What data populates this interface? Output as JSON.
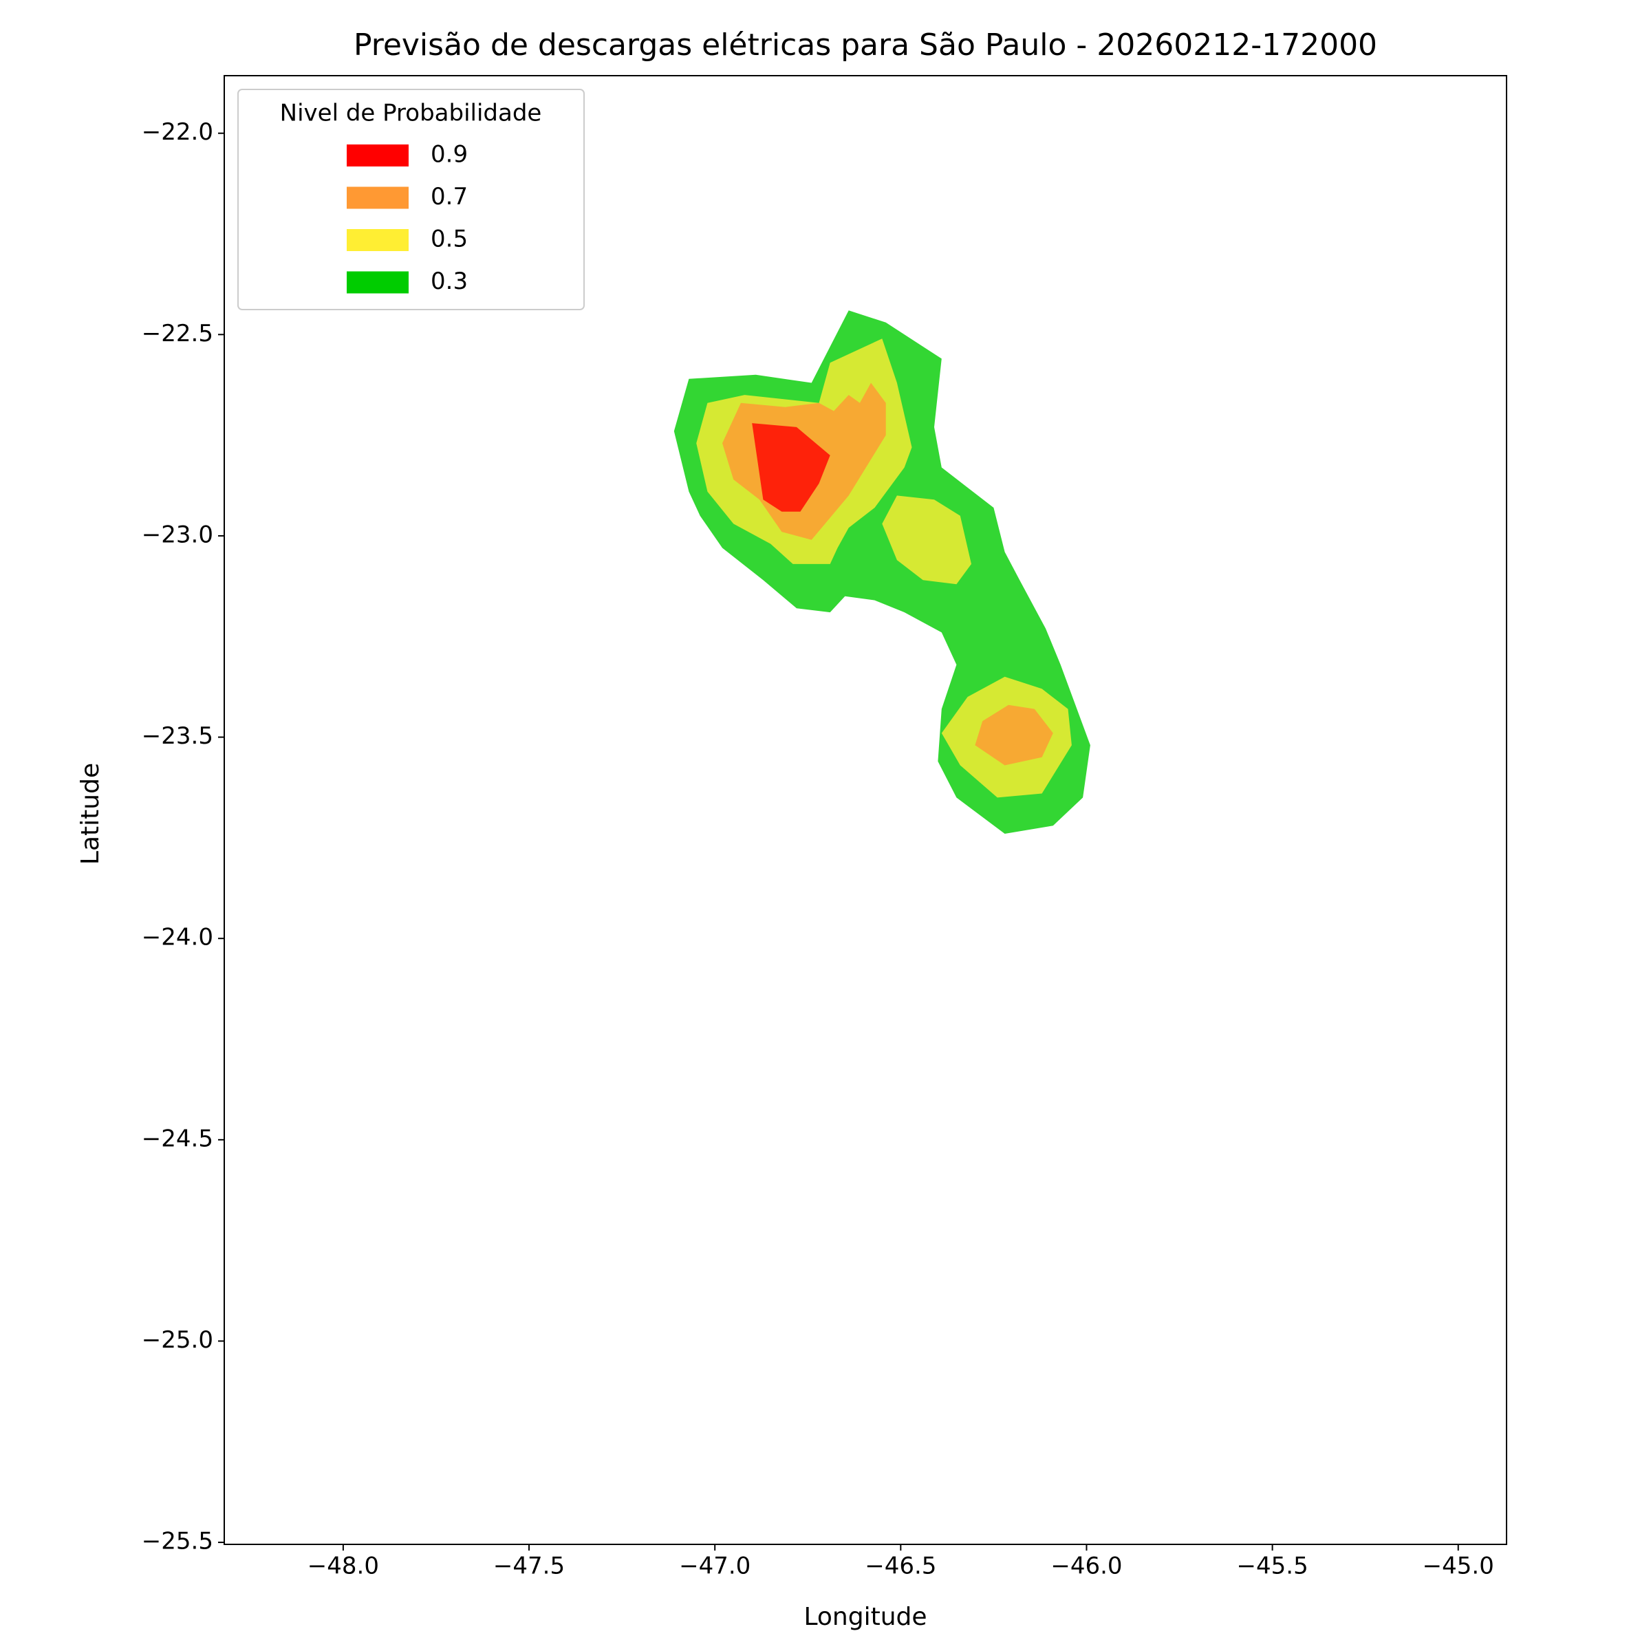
{
  "chart_data": {
    "type": "contour",
    "title": "Previsão de descargas elétricas para São Paulo - 20260212-172000",
    "x_label": "Longitude",
    "y_label": "Latitude",
    "xlim": [
      -48.32,
      -44.87
    ],
    "ylim": [
      -25.505,
      -21.857
    ],
    "xticks": [
      {
        "value": -48.0,
        "label": "−48.0"
      },
      {
        "value": -47.5,
        "label": "−47.5"
      },
      {
        "value": -47.0,
        "label": "−47.0"
      },
      {
        "value": -46.5,
        "label": "−46.5"
      },
      {
        "value": -46.0,
        "label": "−46.0"
      },
      {
        "value": -45.5,
        "label": "−45.5"
      },
      {
        "value": -45.0,
        "label": "−45.0"
      }
    ],
    "yticks": [
      {
        "value": -22.0,
        "label": "−22.0"
      },
      {
        "value": -22.5,
        "label": "−22.5"
      },
      {
        "value": -23.0,
        "label": "−23.0"
      },
      {
        "value": -23.5,
        "label": "−23.5"
      },
      {
        "value": -24.0,
        "label": "−24.0"
      },
      {
        "value": -24.5,
        "label": "−24.5"
      },
      {
        "value": -25.0,
        "label": "−25.0"
      },
      {
        "value": -25.5,
        "label": "−25.5"
      }
    ],
    "legend_title": "Nivel de Probabilidade",
    "legend_position": "upper left",
    "fill_alpha": 0.8,
    "series": [
      {
        "name": "0.9",
        "color": "#ff0000",
        "polygons": [
          {
            "lon": [
              -46.9,
              -46.78,
              -46.69,
              -46.72,
              -46.77,
              -46.82,
              -46.87
            ],
            "lat": [
              -22.72,
              -22.73,
              -22.8,
              -22.87,
              -22.94,
              -22.94,
              -22.91
            ]
          }
        ]
      },
      {
        "name": "0.7",
        "color": "#ff9933",
        "polygons": [
          {
            "lon": [
              -46.98,
              -46.93,
              -46.81,
              -46.72,
              -46.68,
              -46.64,
              -46.61,
              -46.58,
              -46.54,
              -46.54,
              -46.64,
              -46.74,
              -46.82,
              -46.88,
              -46.95
            ],
            "lat": [
              -22.77,
              -22.67,
              -22.68,
              -22.67,
              -22.69,
              -22.65,
              -22.67,
              -22.62,
              -22.67,
              -22.75,
              -22.9,
              -23.01,
              -22.99,
              -22.91,
              -22.86
            ]
          },
          {
            "lon": [
              -46.3,
              -46.28,
              -46.21,
              -46.14,
              -46.09,
              -46.12,
              -46.22
            ],
            "lat": [
              -23.52,
              -23.46,
              -23.42,
              -23.43,
              -23.49,
              -23.55,
              -23.57
            ]
          }
        ]
      },
      {
        "name": "0.5",
        "color": "#ffee33",
        "polygons": [
          {
            "lon": [
              -47.05,
              -47.02,
              -46.92,
              -46.72,
              -46.69,
              -46.55,
              -46.51,
              -46.47,
              -46.49,
              -46.57,
              -46.64,
              -46.67,
              -46.69,
              -46.79,
              -46.85,
              -46.95,
              -47.02
            ],
            "lat": [
              -22.77,
              -22.67,
              -22.65,
              -22.67,
              -22.57,
              -22.51,
              -22.62,
              -22.78,
              -22.83,
              -22.93,
              -22.98,
              -23.03,
              -23.07,
              -23.07,
              -23.02,
              -22.97,
              -22.89
            ]
          },
          {
            "lon": [
              -46.55,
              -46.51,
              -46.41,
              -46.34,
              -46.31,
              -46.35,
              -46.44,
              -46.51
            ],
            "lat": [
              -22.97,
              -22.9,
              -22.91,
              -22.95,
              -23.07,
              -23.12,
              -23.11,
              -23.06
            ]
          },
          {
            "lon": [
              -46.39,
              -46.32,
              -46.22,
              -46.12,
              -46.05,
              -46.04,
              -46.12,
              -46.24,
              -46.34
            ],
            "lat": [
              -23.49,
              -23.4,
              -23.35,
              -23.38,
              -23.43,
              -23.52,
              -23.64,
              -23.65,
              -23.57
            ]
          }
        ]
      },
      {
        "name": "0.3",
        "color": "#00cc00",
        "polygons": [
          {
            "lon": [
              -47.11,
              -47.07,
              -46.89,
              -46.74,
              -46.64,
              -46.54,
              -46.39,
              -46.41,
              -46.39,
              -46.25,
              -46.22,
              -46.18,
              -46.11,
              -46.07,
              -45.99,
              -46.01,
              -46.09,
              -46.22,
              -46.35,
              -46.4,
              -46.39,
              -46.35,
              -46.39,
              -46.49,
              -46.57,
              -46.65,
              -46.69,
              -46.78,
              -46.87,
              -46.98,
              -47.04,
              -47.07
            ],
            "lat": [
              -22.74,
              -22.61,
              -22.6,
              -22.62,
              -22.44,
              -22.47,
              -22.56,
              -22.73,
              -22.83,
              -22.93,
              -23.04,
              -23.11,
              -23.23,
              -23.32,
              -23.52,
              -23.65,
              -23.72,
              -23.74,
              -23.65,
              -23.56,
              -23.43,
              -23.32,
              -23.24,
              -23.19,
              -23.16,
              -23.15,
              -23.19,
              -23.18,
              -23.11,
              -23.03,
              -22.95,
              -22.89
            ]
          }
        ]
      }
    ]
  }
}
